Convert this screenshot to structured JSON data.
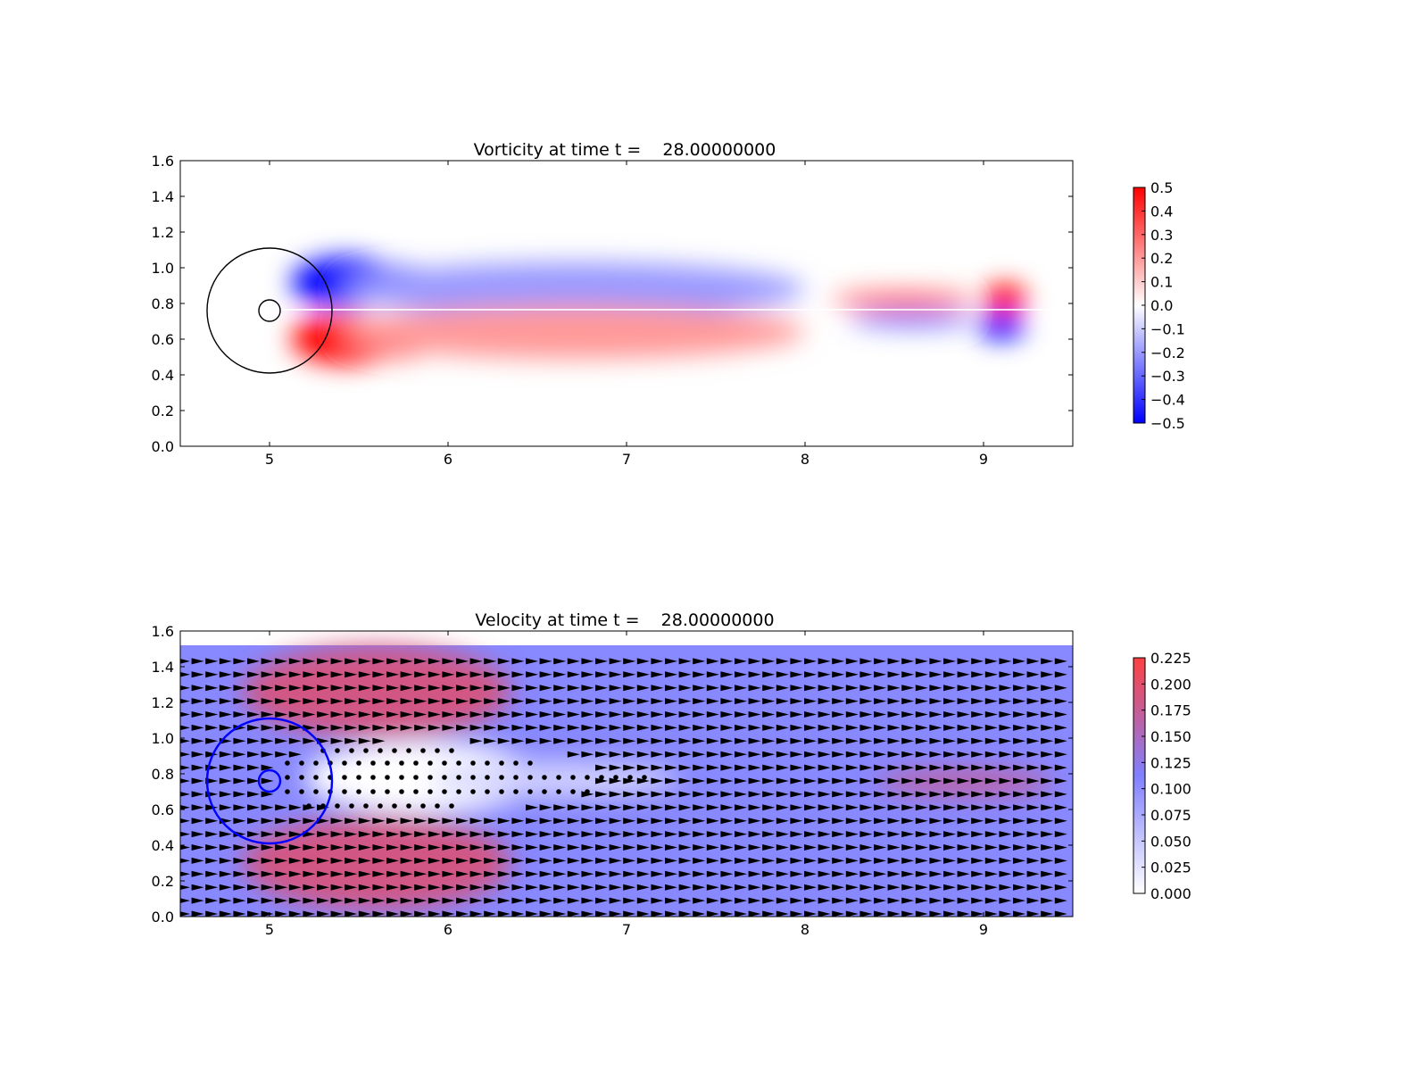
{
  "chart_data": [
    {
      "type": "heatmap",
      "title": "Vorticity at time t =    28.00000000",
      "xlabel": "",
      "ylabel": "",
      "xlim": [
        4.5,
        9.5
      ],
      "ylim": [
        0.0,
        1.6
      ],
      "xticks": [
        "5",
        "6",
        "7",
        "8",
        "9"
      ],
      "yticks": [
        "0.0",
        "0.2",
        "0.4",
        "0.6",
        "0.8",
        "1.0",
        "1.2",
        "1.4",
        "1.6"
      ],
      "colormap": "bwr",
      "colors": {
        "low": "#0000ff",
        "mid": "#ffffff",
        "high": "#ff0000"
      },
      "clim": [
        -0.5,
        0.5
      ],
      "colorbar_ticks": [
        "0.5",
        "0.4",
        "0.3",
        "0.2",
        "0.1",
        "0.0",
        "−0.1",
        "−0.2",
        "−0.3",
        "−0.4",
        "−0.5"
      ],
      "circles": [
        {
          "cx": 5.0,
          "cy": 0.76,
          "r": 0.35,
          "color": "#000000"
        },
        {
          "cx": 5.0,
          "cy": 0.76,
          "r": 0.06,
          "color": "#000000"
        }
      ],
      "features": [
        {
          "kind": "ellipse",
          "cx": 5.42,
          "cy": 0.92,
          "rx": 0.3,
          "ry": 0.14,
          "value": -0.5
        },
        {
          "kind": "ellipse",
          "cx": 5.72,
          "cy": 0.9,
          "rx": 0.26,
          "ry": 0.11,
          "value": -0.5
        },
        {
          "kind": "ellipse",
          "cx": 6.15,
          "cy": 0.9,
          "rx": 0.38,
          "ry": 0.08,
          "value": -0.5
        },
        {
          "kind": "ellipse",
          "cx": 6.7,
          "cy": 0.88,
          "rx": 1.3,
          "ry": 0.15,
          "value": -0.2
        },
        {
          "kind": "ellipse",
          "cx": 5.42,
          "cy": 0.6,
          "rx": 0.3,
          "ry": 0.14,
          "value": 0.5
        },
        {
          "kind": "ellipse",
          "cx": 5.72,
          "cy": 0.61,
          "rx": 0.26,
          "ry": 0.11,
          "value": 0.5
        },
        {
          "kind": "ellipse",
          "cx": 6.15,
          "cy": 0.64,
          "rx": 0.38,
          "ry": 0.08,
          "value": 0.5
        },
        {
          "kind": "ellipse",
          "cx": 6.7,
          "cy": 0.64,
          "rx": 1.3,
          "ry": 0.15,
          "value": 0.2
        },
        {
          "kind": "ellipse",
          "cx": 8.55,
          "cy": 0.82,
          "rx": 0.4,
          "ry": 0.05,
          "value": 0.3
        },
        {
          "kind": "ellipse",
          "cx": 8.6,
          "cy": 0.71,
          "rx": 0.35,
          "ry": 0.04,
          "value": -0.3
        },
        {
          "kind": "ellipse",
          "cx": 9.12,
          "cy": 0.83,
          "rx": 0.12,
          "ry": 0.08,
          "value": 0.5
        },
        {
          "kind": "ellipse",
          "cx": 9.1,
          "cy": 0.67,
          "rx": 0.13,
          "ry": 0.07,
          "value": -0.5
        }
      ]
    },
    {
      "type": "heatmap",
      "title": "Velocity at time t =    28.00000000",
      "xlabel": "",
      "ylabel": "",
      "xlim": [
        4.5,
        9.5
      ],
      "ylim": [
        0.0,
        1.6
      ],
      "xticks": [
        "5",
        "6",
        "7",
        "8",
        "9"
      ],
      "yticks": [
        "0.0",
        "0.2",
        "0.4",
        "0.6",
        "0.8",
        "1.0",
        "1.2",
        "1.4",
        "1.6"
      ],
      "colormap": "white-blue-red",
      "colors": {
        "low": "#ffffff",
        "mid": "#8080ff",
        "high": "#ff4040"
      },
      "clim": [
        0.0,
        0.225
      ],
      "background_value": 0.105,
      "field_ymax": 1.52,
      "colorbar_ticks": [
        "0.225",
        "0.200",
        "0.175",
        "0.150",
        "0.125",
        "0.100",
        "0.075",
        "0.050",
        "0.025",
        "0.000"
      ],
      "quiver": {
        "x_start": 4.52,
        "x_step": 0.078,
        "y_start": 0.015,
        "y_step": 0.0745,
        "rows": 20,
        "color": "#000000"
      },
      "circles": [
        {
          "cx": 5.0,
          "cy": 0.76,
          "r": 0.35,
          "color": "#0000ff"
        },
        {
          "cx": 5.0,
          "cy": 0.76,
          "r": 0.06,
          "color": "#0000ff"
        }
      ],
      "features": [
        {
          "kind": "ellipse",
          "cx": 5.6,
          "cy": 1.26,
          "rx": 0.75,
          "ry": 0.26,
          "value": 0.185
        },
        {
          "kind": "ellipse",
          "cx": 5.6,
          "cy": 0.3,
          "rx": 0.75,
          "ry": 0.26,
          "value": 0.185
        },
        {
          "kind": "ellipse",
          "cx": 5.85,
          "cy": 0.78,
          "rx": 0.65,
          "ry": 0.2,
          "value": 0.0
        },
        {
          "kind": "ellipse",
          "cx": 6.6,
          "cy": 0.77,
          "rx": 0.7,
          "ry": 0.1,
          "value": 0.04
        },
        {
          "kind": "ellipse",
          "cx": 8.9,
          "cy": 0.75,
          "rx": 0.5,
          "ry": 0.07,
          "value": 0.17
        }
      ],
      "stagnation_points": [
        [
          5.3,
          0.93
        ],
        [
          5.38,
          0.93
        ],
        [
          5.46,
          0.93
        ],
        [
          5.54,
          0.93
        ],
        [
          5.62,
          0.93
        ],
        [
          5.7,
          0.93
        ],
        [
          5.78,
          0.93
        ],
        [
          5.86,
          0.93
        ],
        [
          5.94,
          0.93
        ],
        [
          6.02,
          0.93
        ],
        [
          5.1,
          0.86
        ],
        [
          5.18,
          0.86
        ],
        [
          5.26,
          0.86
        ],
        [
          5.34,
          0.86
        ],
        [
          5.42,
          0.86
        ],
        [
          5.5,
          0.86
        ],
        [
          5.58,
          0.86
        ],
        [
          5.66,
          0.86
        ],
        [
          5.74,
          0.86
        ],
        [
          5.82,
          0.86
        ],
        [
          5.9,
          0.86
        ],
        [
          5.98,
          0.86
        ],
        [
          6.06,
          0.86
        ],
        [
          6.14,
          0.86
        ],
        [
          6.22,
          0.86
        ],
        [
          6.3,
          0.86
        ],
        [
          6.38,
          0.86
        ],
        [
          6.46,
          0.86
        ],
        [
          5.1,
          0.78
        ],
        [
          5.18,
          0.78
        ],
        [
          5.26,
          0.78
        ],
        [
          5.34,
          0.78
        ],
        [
          5.42,
          0.78
        ],
        [
          5.5,
          0.78
        ],
        [
          5.58,
          0.78
        ],
        [
          5.66,
          0.78
        ],
        [
          5.74,
          0.78
        ],
        [
          5.82,
          0.78
        ],
        [
          5.9,
          0.78
        ],
        [
          5.98,
          0.78
        ],
        [
          6.06,
          0.78
        ],
        [
          6.14,
          0.78
        ],
        [
          6.22,
          0.78
        ],
        [
          6.3,
          0.78
        ],
        [
          6.38,
          0.78
        ],
        [
          6.46,
          0.78
        ],
        [
          6.54,
          0.78
        ],
        [
          6.62,
          0.78
        ],
        [
          6.7,
          0.78
        ],
        [
          6.78,
          0.78
        ],
        [
          6.86,
          0.78
        ],
        [
          6.94,
          0.78
        ],
        [
          7.02,
          0.78
        ],
        [
          7.1,
          0.78
        ],
        [
          5.1,
          0.7
        ],
        [
          5.18,
          0.7
        ],
        [
          5.26,
          0.7
        ],
        [
          5.34,
          0.7
        ],
        [
          5.42,
          0.7
        ],
        [
          5.5,
          0.7
        ],
        [
          5.58,
          0.7
        ],
        [
          5.66,
          0.7
        ],
        [
          5.74,
          0.7
        ],
        [
          5.82,
          0.7
        ],
        [
          5.9,
          0.7
        ],
        [
          5.98,
          0.7
        ],
        [
          6.06,
          0.7
        ],
        [
          6.14,
          0.7
        ],
        [
          6.22,
          0.7
        ],
        [
          6.3,
          0.7
        ],
        [
          6.38,
          0.7
        ],
        [
          6.46,
          0.7
        ],
        [
          6.54,
          0.7
        ],
        [
          6.62,
          0.7
        ],
        [
          6.7,
          0.7
        ],
        [
          6.78,
          0.7
        ],
        [
          5.22,
          0.62
        ],
        [
          5.3,
          0.62
        ],
        [
          5.38,
          0.62
        ],
        [
          5.46,
          0.62
        ],
        [
          5.54,
          0.62
        ],
        [
          5.62,
          0.62
        ],
        [
          5.7,
          0.62
        ],
        [
          5.78,
          0.62
        ],
        [
          5.86,
          0.62
        ],
        [
          5.94,
          0.62
        ],
        [
          6.02,
          0.62
        ]
      ]
    }
  ]
}
